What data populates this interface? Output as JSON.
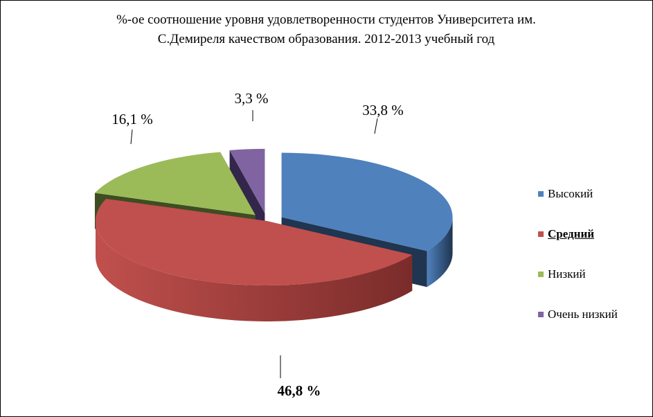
{
  "chart_data": {
    "type": "pie",
    "title_lines": [
      "%-ое соотношение уровня удовлетворенности студентов Университета им.",
      "С.Демиреля качеством образования. 2012-2013  учебный год"
    ],
    "slices": [
      {
        "name": "Высокий",
        "value": 33.8,
        "label": "33,8 %",
        "color": "#4F81BD",
        "side": "#1F3550",
        "exploded": true
      },
      {
        "name": "Средний",
        "value": 46.8,
        "label": "46,8 %",
        "color": "#C0504D",
        "side": "#7A2C2A",
        "exploded": false,
        "emphasis": true
      },
      {
        "name": "Низкий",
        "value": 16.1,
        "label": "16,1 %",
        "color": "#9BBB59",
        "side": "#3E4D22",
        "exploded": true
      },
      {
        "name": "Очень низкий",
        "value": 3.3,
        "label": "3,3 %",
        "color": "#8064A2",
        "side": "#33264A",
        "exploded": true
      }
    ],
    "legend_position": "right",
    "style": "3d-exploded"
  }
}
